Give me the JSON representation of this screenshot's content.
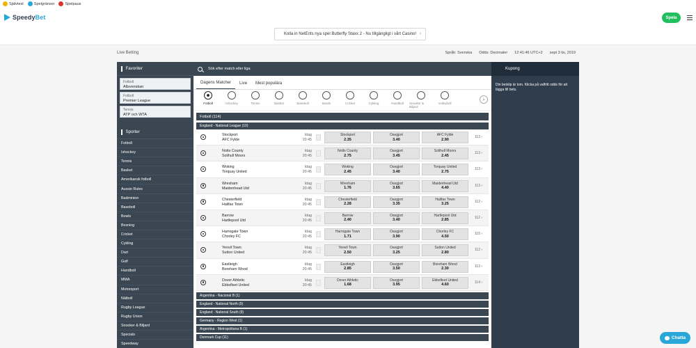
{
  "topstrip": [
    {
      "label": "Självtest",
      "color": "#f0b400"
    },
    {
      "label": "Spelgränser",
      "color": "#2aa7d9"
    },
    {
      "label": "Spelpaus",
      "color": "#d8342b"
    }
  ],
  "header": {
    "logo_a": "Speedy",
    "logo_b": "Bet",
    "promo": "Kolla in NetEnts nya spel Butterfly Staxx 2 - Nu tillgängligt i vårt Casino!",
    "spela": "Spela"
  },
  "infobar": {
    "page_label": "Live Betting",
    "language": "Språk:  Svenska",
    "odds": "Odds:  Decimaler",
    "time": "12:41:46  UTC+2",
    "date": "sept 3 tis, 2019"
  },
  "sidebar": {
    "favorites_title": "Favoriter",
    "favorites": [
      {
        "sport": "Fotboll",
        "league": "Allsvenskan"
      },
      {
        "sport": "Fotboll",
        "league": "Premier League"
      },
      {
        "sport": "Tennis",
        "league": "ATP och WTA"
      }
    ],
    "sports_title": "Sporter",
    "sports": [
      "Fotboll",
      "Ishockey",
      "Tennis",
      "Basket",
      "Amerikansk fotboll",
      "Aussie Rules",
      "Badminton",
      "Baseboll",
      "Bowls",
      "Boxning",
      "Cricket",
      "Cykling",
      "Dart",
      "Golf",
      "Handboll",
      "MMA",
      "Motorsport",
      "Nätboll",
      "Rugby League",
      "Rugby Union",
      "Snooker & Biljard",
      "Specials",
      "Speedway"
    ]
  },
  "center": {
    "search_placeholder": "Sök efter match eller liga",
    "tabs": [
      "Dagens Matcher",
      "Live",
      "Mest populära"
    ],
    "sport_icons": [
      "Fotboll",
      "Ishockey",
      "Tennis",
      "Basket",
      "Baseboll",
      "Bowls",
      "Cricket",
      "Cykling",
      "Handboll",
      "Snooker & Biljard",
      "Volleyboll"
    ],
    "fotboll_bar": "Fotboll (114)",
    "league_bar": "England - National League (10)",
    "matches": [
      {
        "home": "Stockport",
        "away": "AFC Fylde",
        "day": "Idag",
        "time": "20:45",
        "o1_label": "Stockport",
        "o1": "2.35",
        "ox": "3.40",
        "o2_label": "AFC Fylde",
        "o2": "2.90",
        "more": "113 ›"
      },
      {
        "home": "Notts County",
        "away": "Solihull Moors",
        "day": "Idag",
        "time": "20:45",
        "o1_label": "Notts County",
        "o1": "2.75",
        "ox": "3.45",
        "o2_label": "Solihull Moors",
        "o2": "2.45",
        "more": "113 ›"
      },
      {
        "home": "Woking",
        "away": "Torquay United",
        "day": "Idag",
        "time": "20:45",
        "o1_label": "Woking",
        "o1": "2.45",
        "ox": "3.40",
        "o2_label": "Torquay United",
        "o2": "2.75",
        "more": "113 ›"
      },
      {
        "home": "Wrexham",
        "away": "Maidenhead Utd",
        "day": "Idag",
        "time": "20:45",
        "o1_label": "Wrexham",
        "o1": "1.76",
        "ox": "3.65",
        "o2_label": "Maidenhead Utd",
        "o2": "4.40",
        "more": "113 ›"
      },
      {
        "home": "Chesterfield",
        "away": "Halifax Town",
        "day": "Idag",
        "time": "20:45",
        "o1_label": "Chesterfield",
        "o1": "2.28",
        "ox": "3.35",
        "o2_label": "Halifax Town",
        "o2": "3.25",
        "more": "112 ›"
      },
      {
        "home": "Barrow",
        "away": "Hartlepool Utd",
        "day": "Idag",
        "time": "20:45",
        "o1_label": "Barrow",
        "o1": "2.40",
        "ox": "3.40",
        "o2_label": "Hartlepool Utd",
        "o2": "2.85",
        "more": "112 ›"
      },
      {
        "home": "Harrogate Town",
        "away": "Chorley FC",
        "day": "Idag",
        "time": "20:45",
        "o1_label": "Harrogate Town",
        "o1": "1.71",
        "ox": "3.90",
        "o2_label": "Chorley FC",
        "o2": "4.50",
        "more": "115 ›"
      },
      {
        "home": "Yeovil Town",
        "away": "Sutton United",
        "day": "Idag",
        "time": "20:45",
        "o1_label": "Yeovil Town",
        "o1": "2.50",
        "ox": "3.25",
        "o2_label": "Sutton United",
        "o2": "2.80",
        "more": "112 ›"
      },
      {
        "home": "Eastleigh",
        "away": "Boreham Wood",
        "day": "Idag",
        "time": "20:45",
        "o1_label": "Eastleigh",
        "o1": "2.85",
        "ox": "3.50",
        "o2_label": "Boreham Wood",
        "o2": "2.30",
        "more": "113 ›"
      },
      {
        "home": "Dover Athletic",
        "away": "Ebbsfleet United",
        "day": "Idag",
        "time": "20:45",
        "o1_label": "Dover Athletic",
        "o1": "1.68",
        "ox": "3.95",
        "o2_label": "Ebbsfleet United",
        "o2": "4.60",
        "more": "114 ›"
      }
    ],
    "draw_label": "Oavgjort",
    "other_leagues": [
      "Argentina - Nacional B (1)",
      "England - National North (9)",
      "England - National South (9)",
      "Germany - Region West (1)",
      "Argentina - Metropolitana B (1)",
      "Denmark Cup (11)"
    ]
  },
  "kupong": {
    "title": "Kupong",
    "text": "Din betslip är tom. Klicka på valfritt odds för att lägga till bets."
  },
  "chat": {
    "label": "Chatta"
  }
}
